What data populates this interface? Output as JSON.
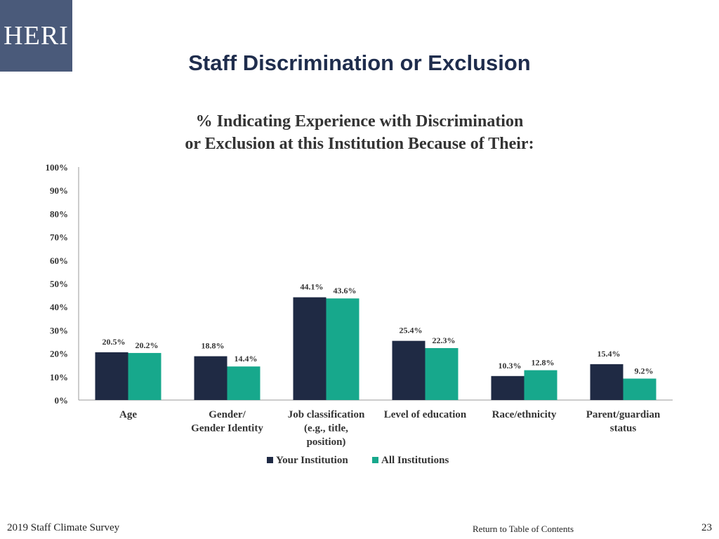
{
  "logo": {
    "text": "HERI"
  },
  "slide": {
    "title": "Staff Discrimination or Exclusion",
    "footer_left": "2019 Staff Climate Survey",
    "footer_link": "Return to Table of Contents",
    "page_number": "23"
  },
  "colors": {
    "your_institution": "#1f2a44",
    "all_institutions": "#17a88c"
  },
  "chart_data": {
    "type": "bar",
    "title_lines": [
      "% Indicating Experience with Discrimination",
      "or Exclusion at this Institution Because of Their:"
    ],
    "categories": [
      [
        "Age"
      ],
      [
        "Gender/",
        "Gender Identity"
      ],
      [
        "Job classification",
        "(e.g., title,",
        "position)"
      ],
      [
        "Level of education"
      ],
      [
        "Race/ethnicity"
      ],
      [
        "Parent/guardian",
        "status"
      ]
    ],
    "series": [
      {
        "name": "Your Institution",
        "values": [
          20.5,
          18.8,
          44.1,
          25.4,
          10.3,
          15.4
        ],
        "color": "#1f2a44"
      },
      {
        "name": "All Institutions",
        "values": [
          20.2,
          14.4,
          43.6,
          22.3,
          12.8,
          9.2
        ],
        "color": "#17a88c"
      }
    ],
    "ylim": [
      0,
      100
    ],
    "yticks": [
      "0%",
      "10%",
      "20%",
      "30%",
      "40%",
      "50%",
      "60%",
      "70%",
      "80%",
      "90%",
      "100%"
    ],
    "grid": false,
    "legend": "bottom"
  }
}
